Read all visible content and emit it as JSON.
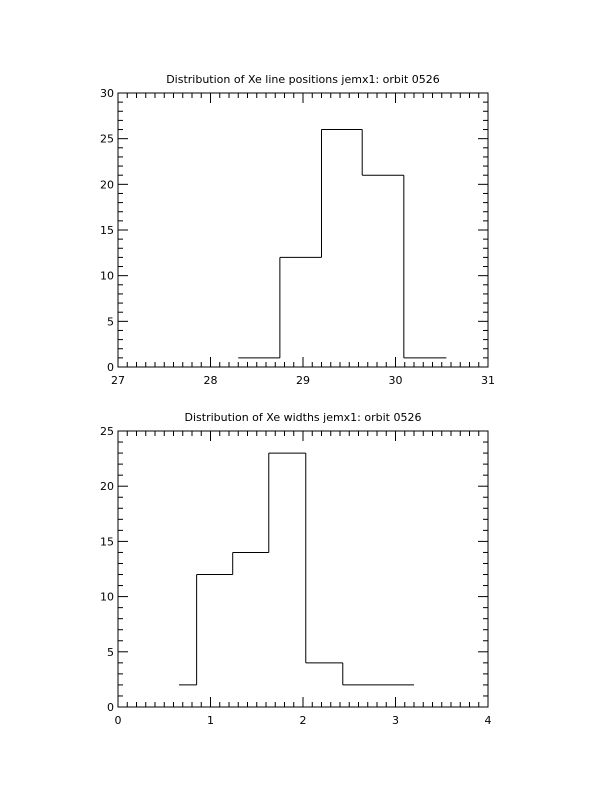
{
  "chart_data": [
    {
      "type": "histogram",
      "title": "Distribution of Xe line positions jemx1: orbit 0526",
      "bins": [
        28.3,
        28.75,
        29.2,
        29.64,
        30.09,
        30.55
      ],
      "counts": [
        1,
        12,
        26,
        21,
        1
      ],
      "color": "#000000",
      "xlim": [
        27,
        31
      ],
      "xticks": [
        27,
        28,
        29,
        30,
        31
      ],
      "ylim": [
        0,
        30
      ],
      "yticks": [
        0,
        5,
        10,
        15,
        20,
        25,
        30
      ]
    },
    {
      "type": "histogram",
      "title": "Distribution of Xe widths jemx1: orbit 0526",
      "bins": [
        0.66,
        0.85,
        1.24,
        1.63,
        2.03,
        2.43,
        3.2
      ],
      "counts": [
        2,
        12,
        14,
        23,
        4,
        2
      ],
      "color": "#000000",
      "xlim": [
        0,
        4
      ],
      "xticks": [
        0,
        1,
        2,
        3,
        4
      ],
      "ylim": [
        0,
        25
      ],
      "yticks": [
        0,
        5,
        10,
        15,
        20,
        25
      ]
    }
  ]
}
